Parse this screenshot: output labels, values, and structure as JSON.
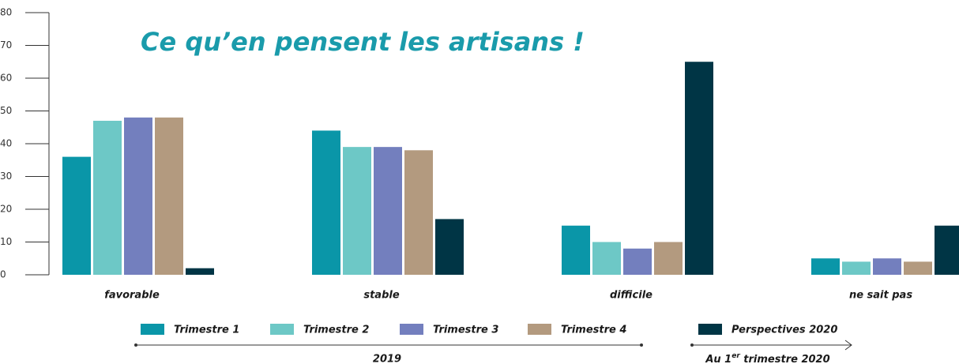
{
  "chart_data": {
    "type": "bar",
    "title": "Ce qu’en pensent les artisans !",
    "categories": [
      "favorable",
      "stable",
      "difficile",
      "ne sait pas"
    ],
    "series": [
      {
        "name": "Trimestre 1",
        "color": "#0a96a8",
        "values": [
          36,
          44,
          15,
          5
        ]
      },
      {
        "name": "Trimestre 2",
        "color": "#6dc8c6",
        "values": [
          47,
          39,
          10,
          4
        ]
      },
      {
        "name": "Trimestre 3",
        "color": "#737fbe",
        "values": [
          48,
          39,
          8,
          5
        ]
      },
      {
        "name": "Trimestre 4",
        "color": "#b39a7f",
        "values": [
          48,
          38,
          10,
          4
        ]
      },
      {
        "name": "Perspectives 2020",
        "color": "#003545",
        "values": [
          2,
          17,
          65,
          15
        ]
      }
    ],
    "ylim": [
      0,
      80
    ],
    "yticks": [
      0,
      10,
      20,
      30,
      40,
      50,
      60,
      70,
      80
    ],
    "annotations": [
      {
        "text": "2019"
      },
      {
        "parts": [
          "Au 1",
          "er",
          " trimestre 2020"
        ]
      }
    ]
  }
}
